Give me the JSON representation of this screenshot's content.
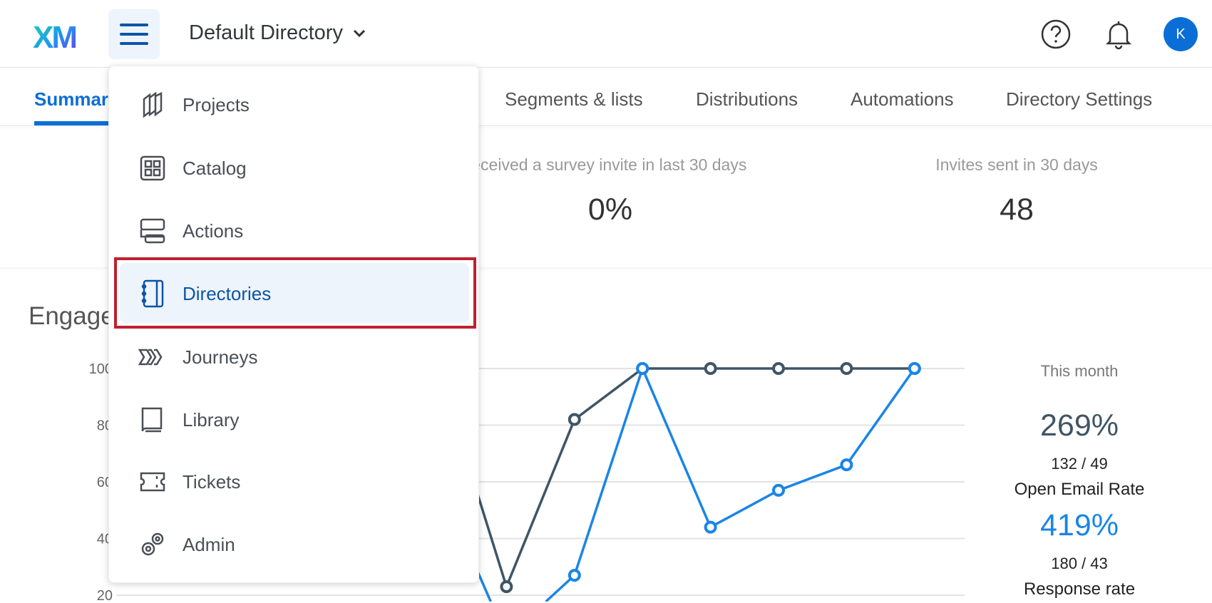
{
  "header": {
    "logo": "XM",
    "directory": "Default Directory",
    "avatar_initial": "K",
    "icons": [
      "help-icon",
      "bell-icon"
    ]
  },
  "tabs": [
    "Summary",
    "Segments & lists",
    "Distributions",
    "Automations",
    "Directory Settings"
  ],
  "stats": [
    {
      "label": "Received a survey invite in last 30 days",
      "value": "0%"
    },
    {
      "label": "Invites sent in 30 days",
      "value": "48"
    }
  ],
  "engagement": {
    "title": "Engagement"
  },
  "menu": {
    "items": [
      {
        "label": "Projects",
        "icon": "projects-icon"
      },
      {
        "label": "Catalog",
        "icon": "catalog-icon"
      },
      {
        "label": "Actions",
        "icon": "actions-icon"
      },
      {
        "label": "Directories",
        "icon": "directories-icon",
        "selected": true
      },
      {
        "label": "Journeys",
        "icon": "journeys-icon"
      },
      {
        "label": "Library",
        "icon": "library-icon"
      },
      {
        "label": "Tickets",
        "icon": "tickets-icon"
      },
      {
        "label": "Admin",
        "icon": "admin-icon"
      }
    ]
  },
  "summary": {
    "title": "This month",
    "open": {
      "pct": "269%",
      "ratio": "132 / 49",
      "label": "Open Email Rate"
    },
    "response": {
      "pct": "419%",
      "ratio": "180 / 43",
      "label": "Response rate"
    }
  },
  "chart_data": {
    "type": "line",
    "ylim": [
      20,
      100
    ],
    "yticks": [
      "20",
      "40",
      "60",
      "80",
      "100"
    ],
    "grid": true,
    "series": [
      {
        "color": "#3f5566",
        "values": [
          100,
          23,
          82,
          100,
          100,
          100,
          100,
          100
        ]
      },
      {
        "color": "#1a85e6",
        "values": [
          60,
          5,
          27,
          100,
          44,
          57,
          66,
          100
        ]
      }
    ]
  },
  "colors": {
    "accent": "#0b6ed7",
    "highlight": "#c0202f",
    "dark_series": "#3f5566",
    "blue_series": "#1a85e6"
  }
}
